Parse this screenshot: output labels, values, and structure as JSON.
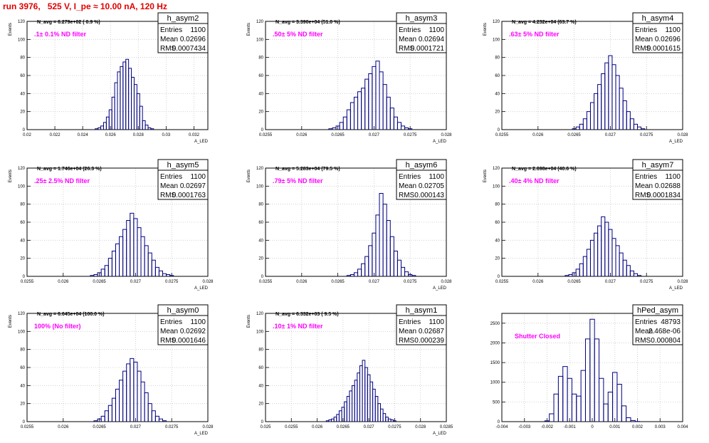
{
  "page_title": "run 3976,   525 V, I_pe ≈ 10.00 nA, 120 Hz",
  "colors": {
    "histogram": "#000080",
    "annotation": "#ff00ff",
    "title": "#e00000",
    "grid": "#c8c8c8"
  },
  "stats_labels": {
    "entries": "Entries",
    "mean": "Mean",
    "rms": "RMS"
  },
  "chart_data": [
    {
      "type": "bar",
      "name": "h_asym2",
      "navg": "N_avg = 6.279e+02 ( 0.9 %)",
      "note": ".1± 0.1% ND filter",
      "entries": "1100",
      "mean": "0.02696",
      "rms": "0.0007434",
      "ylabel": "Events",
      "xlabel": "A_LED",
      "xlim": [
        0.02,
        0.033
      ],
      "ylim": [
        0,
        120
      ],
      "xticks": [
        "0.02",
        "0.022",
        "0.024",
        "0.026",
        "0.028",
        "0.03",
        "0.032"
      ],
      "xtickvals": [
        0.02,
        0.022,
        0.024,
        0.026,
        0.028,
        0.03,
        0.032
      ],
      "yticks": [
        "0",
        "20",
        "40",
        "60",
        "80",
        "100",
        "120"
      ],
      "x": [
        0.025,
        0.0252,
        0.0254,
        0.0256,
        0.0258,
        0.026,
        0.0262,
        0.0264,
        0.0266,
        0.0268,
        0.027,
        0.0272,
        0.0274,
        0.0276,
        0.0278,
        0.028,
        0.0282,
        0.0284,
        0.0286,
        0.0288,
        0.029
      ],
      "values": [
        1,
        2,
        4,
        8,
        14,
        22,
        36,
        52,
        64,
        70,
        75,
        78,
        68,
        58,
        50,
        40,
        26,
        10,
        5,
        2,
        1
      ]
    },
    {
      "type": "bar",
      "name": "h_asym3",
      "navg": "N_avg = 3.390e+04 (51.0 %)",
      "note": ".50± 5% ND filter",
      "entries": "1100",
      "mean": "0.02694",
      "rms": "0.0001721",
      "ylabel": "Events",
      "xlabel": "A_LED",
      "xlim": [
        0.0255,
        0.028
      ],
      "ylim": [
        0,
        120
      ],
      "xticks": [
        "0.0255",
        "0.026",
        "0.0265",
        "0.027",
        "0.0275",
        "0.028"
      ],
      "xtickvals": [
        0.0255,
        0.026,
        0.0265,
        0.027,
        0.0275,
        0.028
      ],
      "yticks": [
        "0",
        "20",
        "40",
        "60",
        "80",
        "100",
        "120"
      ],
      "x": [
        0.0264,
        0.02645,
        0.0265,
        0.02655,
        0.0266,
        0.02665,
        0.0267,
        0.02675,
        0.0268,
        0.02685,
        0.0269,
        0.02695,
        0.027,
        0.02705,
        0.0271,
        0.02715,
        0.0272,
        0.02725,
        0.0273,
        0.02735,
        0.0274,
        0.02745,
        0.0275
      ],
      "values": [
        1,
        2,
        4,
        8,
        14,
        22,
        30,
        36,
        42,
        46,
        56,
        62,
        70,
        76,
        64,
        50,
        36,
        24,
        14,
        8,
        4,
        2,
        1
      ]
    },
    {
      "type": "bar",
      "name": "h_asym4",
      "navg": "N_avg = 4.232e+04 (63.7 %)",
      "note": ".63± 5% ND filter",
      "entries": "1100",
      "mean": "0.02696",
      "rms": "0.0001615",
      "ylabel": "Events",
      "xlabel": "A_LED",
      "xlim": [
        0.0255,
        0.028
      ],
      "ylim": [
        0,
        120
      ],
      "xticks": [
        "0.0255",
        "0.026",
        "0.0265",
        "0.027",
        "0.0275",
        "0.028"
      ],
      "xtickvals": [
        0.0255,
        0.026,
        0.0265,
        0.027,
        0.0275,
        0.028
      ],
      "yticks": [
        "0",
        "20",
        "40",
        "60",
        "80",
        "100",
        "120"
      ],
      "x": [
        0.0265,
        0.02655,
        0.0266,
        0.02665,
        0.0267,
        0.02675,
        0.0268,
        0.02685,
        0.0269,
        0.02695,
        0.027,
        0.02705,
        0.0271,
        0.02715,
        0.0272,
        0.02725,
        0.0273,
        0.02735,
        0.0274,
        0.02745
      ],
      "values": [
        1,
        3,
        6,
        12,
        20,
        30,
        40,
        50,
        62,
        74,
        82,
        72,
        60,
        46,
        32,
        20,
        12,
        6,
        3,
        1
      ]
    },
    {
      "type": "bar",
      "name": "h_asym5",
      "navg": "N_avg = 1.746e+04 (26.3 %)",
      "note": ".25± 2.5% ND filter",
      "entries": "1100",
      "mean": "0.02697",
      "rms": "0.0001763",
      "ylabel": "Events",
      "xlabel": "A_LED",
      "xlim": [
        0.0255,
        0.028
      ],
      "ylim": [
        0,
        120
      ],
      "xticks": [
        "0.0255",
        "0.026",
        "0.0265",
        "0.027",
        "0.0275",
        "0.028"
      ],
      "xtickvals": [
        0.0255,
        0.026,
        0.0265,
        0.027,
        0.0275,
        0.028
      ],
      "yticks": [
        "0",
        "20",
        "40",
        "60",
        "80",
        "100",
        "120"
      ],
      "x": [
        0.0264,
        0.02645,
        0.0265,
        0.02655,
        0.0266,
        0.02665,
        0.0267,
        0.02675,
        0.0268,
        0.02685,
        0.0269,
        0.02695,
        0.027,
        0.02705,
        0.0271,
        0.02715,
        0.0272,
        0.02725,
        0.0273,
        0.02735,
        0.0274,
        0.02745,
        0.0275
      ],
      "values": [
        1,
        2,
        4,
        8,
        12,
        20,
        28,
        36,
        44,
        52,
        62,
        70,
        64,
        54,
        44,
        34,
        26,
        18,
        10,
        6,
        3,
        2,
        1
      ]
    },
    {
      "type": "bar",
      "name": "h_asym6",
      "navg": "N_avg = 5.283e+04 (79.5 %)",
      "note": ".79± 5% ND filter",
      "entries": "1100",
      "mean": "0.02705",
      "rms": "0.000143",
      "ylabel": "Events",
      "xlabel": "A_LED",
      "xlim": [
        0.0255,
        0.028
      ],
      "ylim": [
        0,
        120
      ],
      "xticks": [
        "0.0255",
        "0.026",
        "0.0265",
        "0.027",
        "0.0275",
        "0.028"
      ],
      "xtickvals": [
        0.0255,
        0.026,
        0.0265,
        0.027,
        0.0275,
        0.028
      ],
      "yticks": [
        "0",
        "20",
        "40",
        "60",
        "80",
        "100",
        "120"
      ],
      "x": [
        0.02665,
        0.0267,
        0.02675,
        0.0268,
        0.02685,
        0.0269,
        0.02695,
        0.027,
        0.02705,
        0.0271,
        0.02715,
        0.0272,
        0.02725,
        0.0273,
        0.02735,
        0.0274,
        0.02745,
        0.0275,
        0.02755
      ],
      "values": [
        1,
        2,
        4,
        8,
        14,
        22,
        34,
        48,
        68,
        92,
        80,
        62,
        44,
        28,
        18,
        10,
        5,
        2,
        1
      ]
    },
    {
      "type": "bar",
      "name": "h_asym7",
      "navg": "N_avg = 2.698e+04 (40.6 %)",
      "note": ".40± 4% ND filter",
      "entries": "1100",
      "mean": "0.02688",
      "rms": "0.0001834",
      "ylabel": "Events",
      "xlabel": "A_LED",
      "xlim": [
        0.0255,
        0.028
      ],
      "ylim": [
        0,
        120
      ],
      "xticks": [
        "0.0255",
        "0.026",
        "0.0265",
        "0.027",
        "0.0275",
        "0.028"
      ],
      "xtickvals": [
        0.0255,
        0.026,
        0.0265,
        0.027,
        0.0275,
        0.028
      ],
      "yticks": [
        "0",
        "20",
        "40",
        "60",
        "80",
        "100",
        "120"
      ],
      "x": [
        0.0264,
        0.02645,
        0.0265,
        0.02655,
        0.0266,
        0.02665,
        0.0267,
        0.02675,
        0.0268,
        0.02685,
        0.0269,
        0.02695,
        0.027,
        0.02705,
        0.0271,
        0.02715,
        0.0272,
        0.02725,
        0.0273,
        0.02735,
        0.0274
      ],
      "values": [
        1,
        2,
        4,
        8,
        14,
        22,
        30,
        40,
        48,
        56,
        66,
        60,
        52,
        42,
        34,
        26,
        18,
        12,
        6,
        3,
        1
      ]
    },
    {
      "type": "bar",
      "name": "h_asym0",
      "navg": "N_avg = 6.645e+04 (100.0 %)",
      "note": "100% (No filter)",
      "entries": "1100",
      "mean": "0.02692",
      "rms": "0.0001646",
      "ylabel": "Events",
      "xlabel": "A_LED",
      "xlim": [
        0.0255,
        0.028
      ],
      "ylim": [
        0,
        120
      ],
      "xticks": [
        "0.0255",
        "0.026",
        "0.0265",
        "0.027",
        "0.0275",
        "0.028"
      ],
      "xtickvals": [
        0.0255,
        0.026,
        0.0265,
        0.027,
        0.0275,
        0.028
      ],
      "yticks": [
        "0",
        "20",
        "40",
        "60",
        "80",
        "100",
        "120"
      ],
      "x": [
        0.02645,
        0.0265,
        0.02655,
        0.0266,
        0.02665,
        0.0267,
        0.02675,
        0.0268,
        0.02685,
        0.0269,
        0.02695,
        0.027,
        0.02705,
        0.0271,
        0.02715,
        0.0272,
        0.02725,
        0.0273,
        0.02735,
        0.0274
      ],
      "values": [
        1,
        3,
        6,
        12,
        18,
        26,
        36,
        46,
        56,
        64,
        70,
        66,
        56,
        44,
        32,
        20,
        12,
        6,
        3,
        1
      ]
    },
    {
      "type": "bar",
      "name": "h_asym1",
      "navg": "N_avg = 6.332e+03 ( 9.5 %)",
      "note": ".10± 1% ND filter",
      "entries": "1100",
      "mean": "0.02687",
      "rms": "0.000239",
      "ylabel": "Events",
      "xlabel": "A_LED",
      "xlim": [
        0.025,
        0.0285
      ],
      "ylim": [
        0,
        120
      ],
      "xticks": [
        "0.025",
        "0.0255",
        "0.026",
        "0.0265",
        "0.027",
        "0.0275",
        "0.028",
        "0.0285"
      ],
      "xtickvals": [
        0.025,
        0.0255,
        0.026,
        0.0265,
        0.027,
        0.0275,
        0.028,
        0.0285
      ],
      "yticks": [
        "0",
        "20",
        "40",
        "60",
        "80",
        "100",
        "120"
      ],
      "x": [
        0.0262,
        0.02625,
        0.0263,
        0.02635,
        0.0264,
        0.02645,
        0.0265,
        0.02655,
        0.0266,
        0.02665,
        0.0267,
        0.02675,
        0.0268,
        0.02685,
        0.0269,
        0.02695,
        0.027,
        0.02705,
        0.0271,
        0.02715,
        0.0272,
        0.02725,
        0.0273,
        0.02735,
        0.0274,
        0.02745,
        0.0275
      ],
      "values": [
        1,
        2,
        3,
        5,
        8,
        12,
        16,
        22,
        28,
        34,
        40,
        46,
        54,
        62,
        68,
        60,
        52,
        44,
        36,
        28,
        20,
        14,
        9,
        5,
        3,
        2,
        1
      ]
    },
    {
      "type": "bar",
      "name": "hPed_asym",
      "navg": "",
      "note": "Shutter Closed",
      "entries": "48793",
      "mean": "2.468e-06",
      "rms": "0.000804",
      "ylabel": "",
      "xlabel": "",
      "xlim": [
        -0.004,
        0.004
      ],
      "ylim": [
        0,
        2750
      ],
      "xticks": [
        "-0.004",
        "-0.003",
        "-0.002",
        "-0.001",
        "0",
        "0.001",
        "0.002",
        "0.003",
        "0.004"
      ],
      "xtickvals": [
        -0.004,
        -0.003,
        -0.002,
        -0.001,
        0,
        0.001,
        0.002,
        0.003,
        0.004
      ],
      "yticks": [
        "0",
        "500",
        "1000",
        "1500",
        "2000",
        "2500"
      ],
      "ytickvals": [
        0,
        500,
        1000,
        1500,
        2000,
        2500
      ],
      "x": [
        -0.002,
        -0.0018,
        -0.0016,
        -0.0014,
        -0.0012,
        -0.001,
        -0.0008,
        -0.0006,
        -0.0004,
        -0.0002,
        0.0,
        0.0002,
        0.0004,
        0.0006,
        0.0008,
        0.001,
        0.0012,
        0.0014,
        0.0016,
        0.0018,
        0.002
      ],
      "values": [
        20,
        200,
        700,
        1150,
        1400,
        1100,
        700,
        650,
        1300,
        2100,
        2600,
        2100,
        1100,
        450,
        750,
        1250,
        950,
        400,
        100,
        30,
        5
      ]
    }
  ]
}
